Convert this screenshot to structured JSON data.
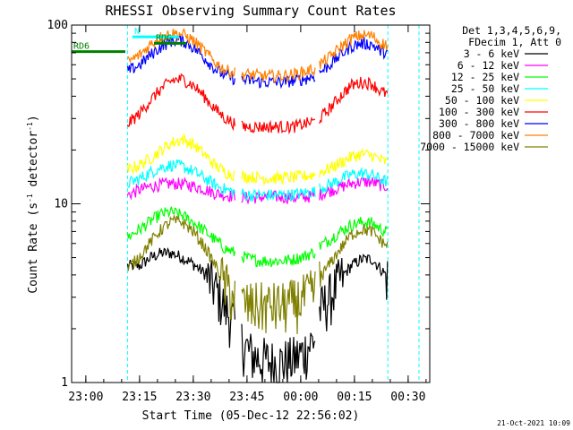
{
  "chart_data": {
    "type": "line",
    "title": "RHESSI Observing Summary Count Rates",
    "xlabel": "Start Time (05-Dec-12 22:56:02)",
    "ylabel": "Count Rate (s",
    "ylabel_sup": "-1",
    "ylabel_rest": " detector",
    "ylabel_end": ")",
    "x_unit": "minutes from 22:56:02",
    "xlim": [
      0,
      100
    ],
    "ylim": [
      1,
      100
    ],
    "yscale": "log",
    "xticks": [
      {
        "label": "23:00",
        "x": 3.97
      },
      {
        "label": "23:15",
        "x": 18.97
      },
      {
        "label": "23:30",
        "x": 33.97
      },
      {
        "label": "23:45",
        "x": 48.97
      },
      {
        "label": "00:00",
        "x": 63.97
      },
      {
        "label": "00:15",
        "x": 78.97
      },
      {
        "label": "00:30",
        "x": 93.97
      }
    ],
    "yticks": [
      {
        "label": "1",
        "y": 1
      },
      {
        "label": "10",
        "y": 10
      },
      {
        "label": "100",
        "y": 100
      }
    ],
    "legend": {
      "placement": "right",
      "header": [
        "Det 1,3,4,5,6,9,",
        "FDecim 1, Att 0"
      ]
    },
    "flags": [
      {
        "label": "N",
        "x_start": 17,
        "x_end": 30,
        "y": 86,
        "color": "#00ffff"
      },
      {
        "label": "RDG",
        "x_start": 23,
        "x_end": 32,
        "y": 79,
        "color": "#008000"
      },
      {
        "label": "RD6",
        "x_start": 0,
        "x_end": 15,
        "y": 71,
        "color": "#008000"
      }
    ],
    "segments": [
      [
        15.6,
        45.7
      ],
      [
        47.5,
        68.1
      ],
      [
        69.2,
        88.3
      ]
    ],
    "series": [
      {
        "name": "3 - 6 keV",
        "color": "#000000",
        "x": [
          15.6,
          19,
          22,
          25,
          28,
          31,
          34,
          37,
          40,
          43,
          45.7,
          47.5,
          50,
          53,
          56,
          59,
          62,
          65,
          68.1,
          69.2,
          72,
          75,
          78,
          81,
          84,
          86,
          88.3
        ],
        "y": [
          4.5,
          4.5,
          5.0,
          5.3,
          5.3,
          5.0,
          4.6,
          4.1,
          3.4,
          2.6,
          2.1,
          1.7,
          1.45,
          1.35,
          1.3,
          1.3,
          1.35,
          1.5,
          1.8,
          2.5,
          3.0,
          3.8,
          4.5,
          4.9,
          4.9,
          4.4,
          3.9
        ]
      },
      {
        "name": "6 - 12 keV",
        "color": "#ff00ff",
        "x": [
          15.6,
          19,
          22,
          25,
          28,
          31,
          34,
          37,
          40,
          43,
          45.7,
          47.5,
          50,
          53,
          56,
          59,
          62,
          65,
          68.1,
          69.2,
          72,
          75,
          78,
          81,
          84,
          86,
          88.3
        ],
        "y": [
          11.2,
          12.0,
          12.5,
          12.8,
          13.0,
          12.9,
          12.6,
          12.1,
          11.5,
          11.2,
          11.0,
          10.9,
          10.8,
          10.9,
          11.0,
          10.9,
          10.8,
          10.9,
          11.1,
          11.3,
          11.8,
          12.4,
          13.0,
          13.3,
          13.2,
          12.8,
          12.5
        ]
      },
      {
        "name": "12 - 25 keV",
        "color": "#00ff00",
        "x": [
          15.6,
          19,
          22,
          25,
          28,
          31,
          34,
          37,
          40,
          43,
          45.7,
          47.5,
          50,
          53,
          56,
          59,
          62,
          65,
          68.1,
          69.2,
          72,
          75,
          78,
          81,
          84,
          86,
          88.3
        ],
        "y": [
          6.5,
          7.2,
          8.0,
          8.8,
          9.0,
          8.6,
          7.9,
          7.1,
          6.3,
          5.6,
          5.3,
          5.1,
          4.9,
          4.8,
          4.8,
          4.8,
          4.9,
          5.1,
          5.4,
          5.8,
          6.3,
          7.0,
          7.6,
          7.9,
          7.8,
          7.3,
          6.9
        ]
      },
      {
        "name": "25 - 50 keV",
        "color": "#00ffff",
        "x": [
          15.6,
          19,
          22,
          25,
          28,
          31,
          34,
          37,
          40,
          43,
          45.7,
          47.5,
          50,
          53,
          56,
          59,
          62,
          65,
          68.1,
          69.2,
          72,
          75,
          78,
          81,
          84,
          86,
          88.3
        ],
        "y": [
          13.0,
          13.8,
          15.0,
          16.0,
          16.5,
          16.2,
          15.2,
          14.0,
          12.8,
          12.0,
          11.6,
          11.4,
          11.2,
          11.2,
          11.2,
          11.2,
          11.3,
          11.5,
          11.8,
          12.2,
          12.8,
          13.7,
          14.6,
          14.8,
          14.5,
          13.8,
          13.3
        ]
      },
      {
        "name": "50 - 100 keV",
        "color": "#ffff00",
        "x": [
          15.6,
          19,
          22,
          25,
          28,
          31,
          34,
          37,
          40,
          43,
          45.7,
          47.5,
          50,
          53,
          56,
          59,
          62,
          65,
          68.1,
          69.2,
          72,
          75,
          78,
          81,
          84,
          86,
          88.3
        ],
        "y": [
          15.5,
          16.5,
          18.0,
          20.0,
          22.0,
          23.0,
          21.5,
          19.0,
          16.5,
          15.0,
          14.5,
          14.3,
          14.2,
          14.0,
          13.9,
          14.0,
          14.1,
          14.3,
          14.6,
          15.0,
          15.8,
          17.0,
          18.3,
          19.0,
          18.7,
          17.7,
          17.0
        ]
      },
      {
        "name": "100 - 300 keV",
        "color": "#ff0000",
        "x": [
          15.6,
          19,
          22,
          25,
          28,
          31,
          34,
          37,
          40,
          43,
          45.7,
          47.5,
          50,
          53,
          56,
          59,
          62,
          65,
          68.1,
          69.2,
          72,
          75,
          78,
          81,
          84,
          86,
          88.3
        ],
        "y": [
          28,
          32,
          38,
          44,
          49,
          50,
          46,
          40,
          34,
          30,
          28,
          27,
          27,
          27,
          27,
          27,
          27,
          28,
          29,
          30,
          34,
          40,
          46,
          48,
          47,
          43,
          41
        ]
      },
      {
        "name": "300 - 800 keV",
        "color": "#0000ff",
        "x": [
          15.6,
          19,
          22,
          25,
          28,
          31,
          34,
          37,
          40,
          43,
          45.7,
          47.5,
          50,
          53,
          56,
          59,
          62,
          65,
          68.1,
          69.2,
          72,
          75,
          78,
          81,
          84,
          86,
          88.3
        ],
        "y": [
          55,
          60,
          68,
          76,
          82,
          82,
          75,
          66,
          57,
          52,
          50,
          49,
          49,
          48,
          48,
          48,
          49,
          50,
          52,
          54,
          60,
          68,
          76,
          79,
          78,
          72,
          70
        ]
      },
      {
        "name": "800 - 7000 keV",
        "color": "#ff8000",
        "x": [
          15.6,
          19,
          22,
          25,
          28,
          31,
          34,
          37,
          40,
          43,
          45.7,
          47.5,
          50,
          53,
          56,
          59,
          62,
          65,
          68.1,
          69.2,
          72,
          75,
          78,
          81,
          84,
          86,
          88.3
        ],
        "y": [
          62,
          68,
          78,
          86,
          90,
          89,
          82,
          72,
          62,
          56,
          54,
          53,
          53,
          52,
          52,
          52,
          53,
          55,
          57,
          60,
          66,
          75,
          84,
          88,
          87,
          80,
          77
        ]
      },
      {
        "name": "7000 - 15000 keV",
        "color": "#808000",
        "x": [
          15.6,
          19,
          22,
          25,
          28,
          31,
          34,
          37,
          40,
          43,
          45.7,
          47.5,
          50,
          53,
          56,
          59,
          62,
          65,
          68.1,
          69.2,
          72,
          75,
          78,
          81,
          84,
          86,
          88.3
        ],
        "y": [
          4.3,
          5.1,
          6.1,
          7.2,
          8.0,
          7.9,
          7.0,
          5.8,
          4.6,
          3.5,
          3.0,
          2.8,
          2.7,
          2.7,
          2.7,
          2.7,
          2.8,
          3.0,
          3.3,
          3.8,
          4.6,
          5.6,
          6.7,
          7.2,
          7.0,
          6.3,
          5.8
        ]
      }
    ]
  },
  "footer": {
    "date_stamp": "21-Oct-2021 10:09"
  }
}
